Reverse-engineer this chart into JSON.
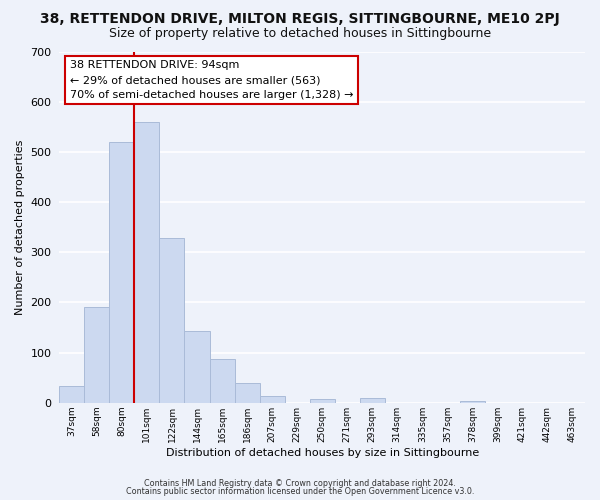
{
  "title": "38, RETTENDON DRIVE, MILTON REGIS, SITTINGBOURNE, ME10 2PJ",
  "subtitle": "Size of property relative to detached houses in Sittingbourne",
  "xlabel": "Distribution of detached houses by size in Sittingbourne",
  "ylabel": "Number of detached properties",
  "bar_labels": [
    "37sqm",
    "58sqm",
    "80sqm",
    "101sqm",
    "122sqm",
    "144sqm",
    "165sqm",
    "186sqm",
    "207sqm",
    "229sqm",
    "250sqm",
    "271sqm",
    "293sqm",
    "314sqm",
    "335sqm",
    "357sqm",
    "378sqm",
    "399sqm",
    "421sqm",
    "442sqm",
    "463sqm"
  ],
  "bar_values": [
    33,
    190,
    519,
    560,
    328,
    143,
    87,
    40,
    13,
    0,
    8,
    0,
    10,
    0,
    0,
    0,
    4,
    0,
    0,
    0,
    0
  ],
  "bar_color": "#ccd9f0",
  "bar_edge_color": "#aabbd8",
  "vline_color": "#cc0000",
  "ylim": [
    0,
    700
  ],
  "yticks": [
    0,
    100,
    200,
    300,
    400,
    500,
    600,
    700
  ],
  "annotation_text": "38 RETTENDON DRIVE: 94sqm\n← 29% of detached houses are smaller (563)\n70% of semi-detached houses are larger (1,328) →",
  "annotation_box_color": "#ffffff",
  "annotation_box_edge": "#cc0000",
  "footer_line1": "Contains HM Land Registry data © Crown copyright and database right 2024.",
  "footer_line2": "Contains public sector information licensed under the Open Government Licence v3.0.",
  "bg_color": "#eef2fa",
  "grid_color": "#ffffff",
  "title_fontsize": 10,
  "subtitle_fontsize": 9,
  "vline_bar_index": 3
}
